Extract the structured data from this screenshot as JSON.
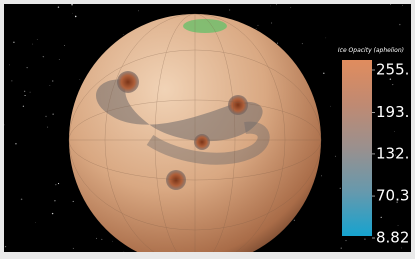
{
  "colorbar": {
    "title": "Ice Opacity (aphelion)",
    "range": [
      8.82,
      255
    ],
    "ticks": [
      {
        "value": 255,
        "label": "255."
      },
      {
        "value": 193,
        "label": "193."
      },
      {
        "value": 132,
        "label": "132."
      },
      70.3,
      8.82
    ]
  }
}
